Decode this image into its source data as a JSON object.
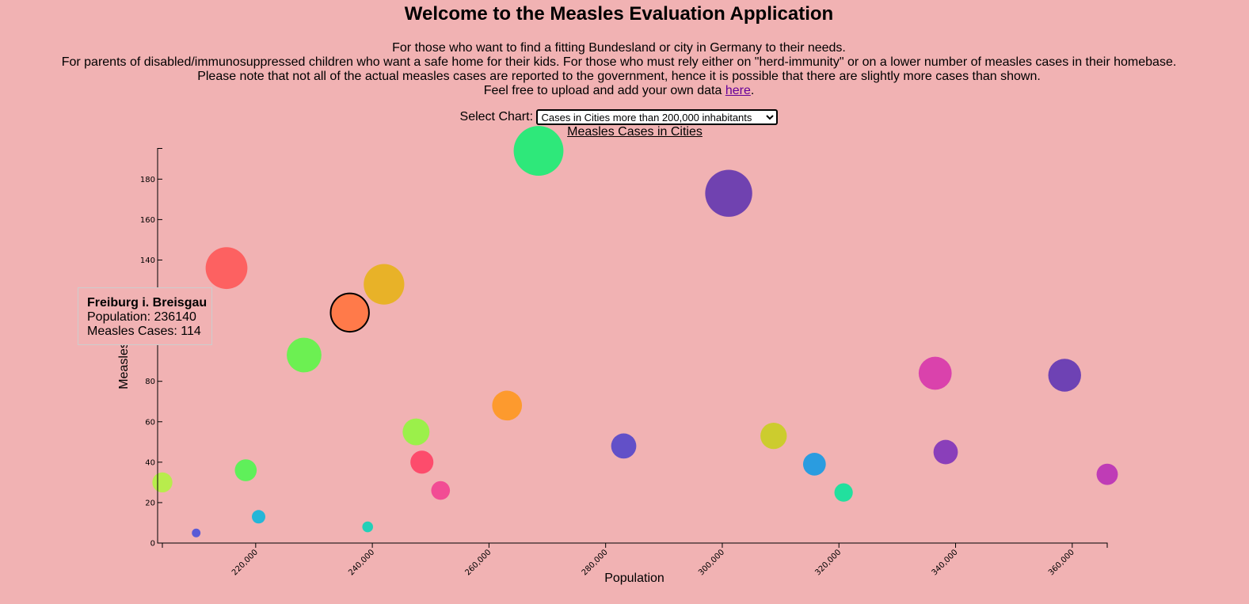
{
  "page": {
    "title": "Welcome to the Measles Evaluation Application",
    "intro_lines": [
      "For those who want to find a fitting Bundesland or city in Germany to their needs.",
      "For parents of disabled/immunosuppressed children who want a safe home for their kids. For those who must rely either on \"herd-immunity\" or on a lower number of measles cases in their homebase.",
      "Please note that not all of the actual measles cases are reported to the government, hence it is possible that there are slightly more cases than shown."
    ],
    "upload_prefix": "Feel free to upload and add your own data ",
    "upload_link": "here",
    "upload_suffix": "."
  },
  "selector": {
    "label": "Select Chart:",
    "selected": "Cases in Cities more than 200,000 inhabitants"
  },
  "tooltip": {
    "name": "Freiburg i. Breisgau",
    "population_label": "Population: 236140",
    "cases_label": "Measles Cases: 114"
  },
  "chart_data": {
    "type": "scatter",
    "title": "Measles Cases in Cities",
    "xlabel": "Population",
    "ylabel": "Measles Cases",
    "xlim": [
      204000,
      366000
    ],
    "ylim": [
      0,
      195
    ],
    "x_ticks": [
      220000,
      240000,
      260000,
      280000,
      300000,
      320000,
      340000,
      360000
    ],
    "x_tick_labels": [
      "220,000",
      "240,000",
      "260,000",
      "280,000",
      "300,000",
      "320,000",
      "340,000",
      "360,000"
    ],
    "y_ticks": [
      0,
      20,
      40,
      60,
      80,
      100,
      120,
      140,
      160,
      180
    ],
    "y_tick_labels": [
      "0",
      "20",
      "40",
      "60",
      "80",
      "100",
      "120",
      "140",
      "160",
      "180"
    ],
    "size_encoding": "measles cases",
    "highlighted": "Freiburg i. Breisgau",
    "points": [
      {
        "x": 204000,
        "y": 30,
        "color": "#b8ec4c"
      },
      {
        "x": 209800,
        "y": 5,
        "color": "#5a5ad6"
      },
      {
        "x": 215000,
        "y": 136,
        "color": "#fd6161"
      },
      {
        "x": 218300,
        "y": 36,
        "color": "#5ff05a"
      },
      {
        "x": 220500,
        "y": 13,
        "color": "#25b6d8"
      },
      {
        "x": 228300,
        "y": 93,
        "color": "#6cf052"
      },
      {
        "name": "Freiburg i. Breisgau",
        "x": 236140,
        "y": 114,
        "color": "#ff7a4a"
      },
      {
        "x": 239200,
        "y": 8,
        "color": "#22d0b8"
      },
      {
        "x": 242000,
        "y": 128,
        "color": "#e8b228"
      },
      {
        "x": 247500,
        "y": 55,
        "color": "#9bf04a"
      },
      {
        "x": 248500,
        "y": 40,
        "color": "#fd4c6c"
      },
      {
        "x": 251700,
        "y": 26,
        "color": "#f24c94"
      },
      {
        "x": 263100,
        "y": 68,
        "color": "#fd9a2e"
      },
      {
        "x": 268500,
        "y": 194,
        "color": "#2ee87a"
      },
      {
        "x": 283100,
        "y": 48,
        "color": "#6250c8"
      },
      {
        "x": 301100,
        "y": 173,
        "color": "#7042b0"
      },
      {
        "x": 308800,
        "y": 53,
        "color": "#cccc2e"
      },
      {
        "x": 315800,
        "y": 39,
        "color": "#2a9ce0"
      },
      {
        "x": 320800,
        "y": 25,
        "color": "#22e09e"
      },
      {
        "x": 336500,
        "y": 84,
        "color": "#da42ac"
      },
      {
        "x": 338300,
        "y": 45,
        "color": "#8a3fba"
      },
      {
        "x": 358700,
        "y": 83,
        "color": "#6e42b4"
      },
      {
        "x": 366000,
        "y": 34,
        "color": "#bf3cb6"
      }
    ]
  }
}
